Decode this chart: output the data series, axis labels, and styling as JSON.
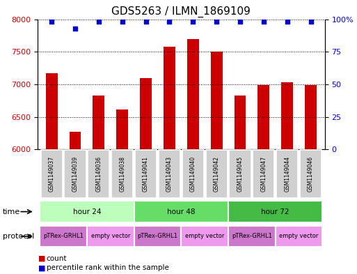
{
  "title": "GDS5263 / ILMN_1869109",
  "samples": [
    "GSM1149037",
    "GSM1149039",
    "GSM1149036",
    "GSM1149038",
    "GSM1149041",
    "GSM1149043",
    "GSM1149040",
    "GSM1149042",
    "GSM1149045",
    "GSM1149047",
    "GSM1149044",
    "GSM1149046"
  ],
  "counts": [
    7170,
    6270,
    6830,
    6610,
    7090,
    7580,
    7700,
    7500,
    6830,
    6990,
    7030,
    6990
  ],
  "percentiles": [
    98,
    93,
    98,
    98,
    98,
    98,
    98,
    98,
    98,
    98,
    98,
    98
  ],
  "ylim_left": [
    6000,
    8000
  ],
  "ylim_right": [
    0,
    100
  ],
  "yticks_left": [
    6000,
    6500,
    7000,
    7500,
    8000
  ],
  "yticks_right": [
    0,
    25,
    50,
    75,
    100
  ],
  "bar_color": "#cc0000",
  "dot_color": "#0000cc",
  "time_groups": [
    {
      "label": "hour 24",
      "start": 0,
      "end": 4
    },
    {
      "label": "hour 48",
      "start": 4,
      "end": 8
    },
    {
      "label": "hour 72",
      "start": 8,
      "end": 12
    }
  ],
  "time_colors": [
    "#bbffbb",
    "#66dd66",
    "#44bb44"
  ],
  "protocol_groups": [
    {
      "label": "pTRex-GRHL1",
      "start": 0,
      "end": 2
    },
    {
      "label": "empty vector",
      "start": 2,
      "end": 4
    },
    {
      "label": "pTRex-GRHL1",
      "start": 4,
      "end": 6
    },
    {
      "label": "empty vector",
      "start": 6,
      "end": 8
    },
    {
      "label": "pTRex-GRHL1",
      "start": 8,
      "end": 10
    },
    {
      "label": "empty vector",
      "start": 10,
      "end": 12
    }
  ],
  "proto_colors": [
    "#cc77cc",
    "#ee99ee"
  ],
  "legend_count_label": "count",
  "legend_percentile_label": "percentile rank within the sample",
  "time_label": "time",
  "protocol_label": "protocol",
  "bg_color": "#ffffff",
  "bar_width": 0.5,
  "title_fontsize": 11,
  "tick_fontsize": 8,
  "sample_box_color": "#d0d0d0"
}
